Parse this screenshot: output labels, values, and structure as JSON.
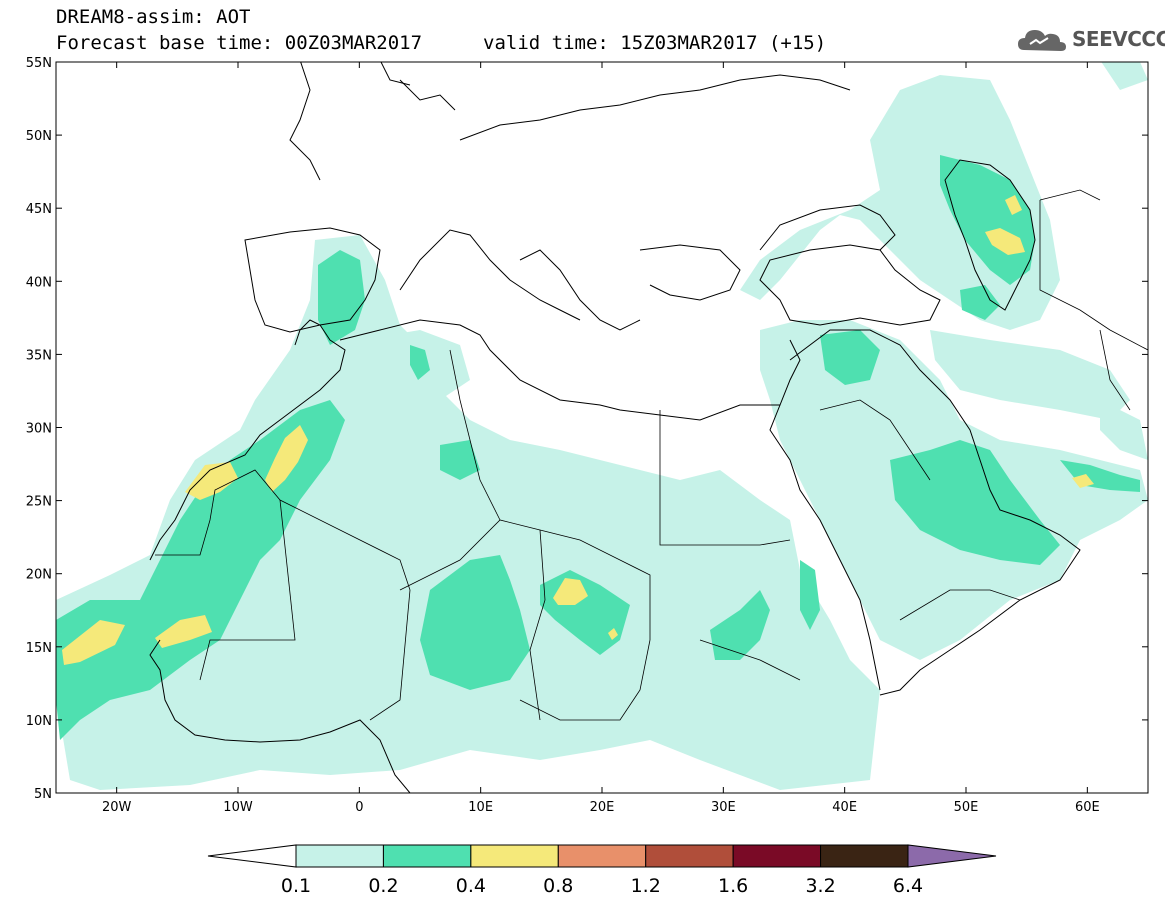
{
  "header": {
    "title": "DREAM8-assim: AOT",
    "base_time": "Forecast base time: 00Z03MAR2017",
    "valid_time": "valid time: 15Z03MAR2017 (+15)",
    "logo_text": "SEEVCCC"
  },
  "map": {
    "lon_range": [
      -25,
      65
    ],
    "lat_range": [
      5,
      55
    ],
    "lat_labels": [
      "55N",
      "50N",
      "45N",
      "40N",
      "35N",
      "30N",
      "25N",
      "20N",
      "15N",
      "10N",
      "5N"
    ],
    "lat_values": [
      55,
      50,
      45,
      40,
      35,
      30,
      25,
      20,
      15,
      10,
      5
    ],
    "lon_labels": [
      "20W",
      "10W",
      "0",
      "10E",
      "20E",
      "30E",
      "40E",
      "50E",
      "60E"
    ],
    "lon_values": [
      -20,
      -10,
      0,
      10,
      20,
      30,
      40,
      50,
      60
    ],
    "field": "Aerosol Optical Thickness"
  },
  "colorbar": {
    "colors": [
      "#ffffff",
      "#c6f2e8",
      "#4fe0b0",
      "#f5e97a",
      "#e8906a",
      "#b04e3a",
      "#7a0a26",
      "#3a2414",
      "#8c6aaa"
    ],
    "labels": [
      "0.1",
      "0.2",
      "0.4",
      "0.8",
      "1.2",
      "1.6",
      "3.2",
      "6.4"
    ]
  }
}
